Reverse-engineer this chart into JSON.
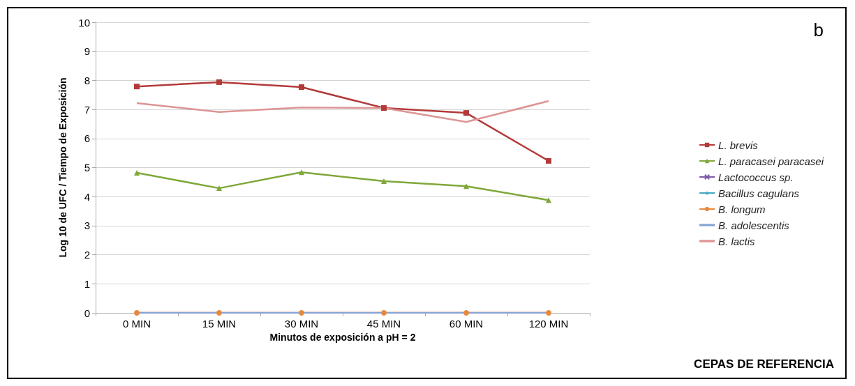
{
  "chart_data": {
    "type": "line",
    "ylabel": "Log 10 de UFC / Tiempo de Exposición",
    "xlabel": "Minutos de exposición a pH = 2",
    "categories": [
      "0 MIN",
      "15 MIN",
      "30 MIN",
      "45 MIN",
      "60 MIN",
      "120 MIN"
    ],
    "ylim": [
      0,
      10
    ],
    "yticks": [
      0,
      1,
      2,
      3,
      4,
      5,
      6,
      7,
      8,
      9,
      10
    ],
    "grid": "y",
    "legend": "right",
    "line_style": "solid",
    "annotations": [
      "b",
      "CEPAS DE REFERENCIA"
    ],
    "series": [
      {
        "name": "L. brevis",
        "color": "#b33a3a",
        "marker": "square",
        "values": [
          7.79,
          7.94,
          7.77,
          7.05,
          6.88,
          5.23
        ]
      },
      {
        "name": "L. paracasei paracasei",
        "color": "#7fa73a",
        "marker": "triangle",
        "values": [
          4.82,
          4.29,
          4.84,
          4.53,
          4.36,
          3.88
        ]
      },
      {
        "name": "Lactococcus sp.",
        "color": "#7e57a8",
        "marker": "cross",
        "values": [
          null,
          null,
          null,
          null,
          null,
          null
        ]
      },
      {
        "name": "Bacillus cagulans",
        "color": "#3fa9c3",
        "marker": "star",
        "values": [
          null,
          null,
          null,
          null,
          null,
          null
        ]
      },
      {
        "name": "B. longum",
        "color": "#e8883a",
        "marker": "circle",
        "values": [
          0,
          0,
          0,
          0,
          0,
          0
        ]
      },
      {
        "name": "B. adolescentis",
        "color": "#86a4d9",
        "marker": "none",
        "values": [
          0,
          0,
          0,
          0,
          0,
          0
        ]
      },
      {
        "name": "B. lactis",
        "color": "#dd9494",
        "marker": "none",
        "values": [
          7.22,
          6.91,
          7.07,
          7.05,
          6.57,
          7.29
        ]
      }
    ]
  }
}
